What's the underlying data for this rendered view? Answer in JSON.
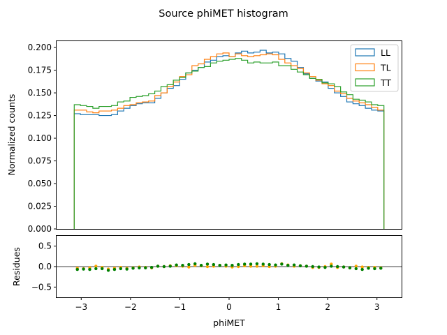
{
  "chart_data": [
    {
      "type": "histogram-step",
      "title": "Source phiMET histogram",
      "xlabel": "",
      "ylabel": "Normalized counts",
      "xlim": [
        -3.5,
        3.5
      ],
      "ylim": [
        0,
        0.207
      ],
      "yticks": [
        0.0,
        0.025,
        0.05,
        0.075,
        0.1,
        0.125,
        0.15,
        0.175,
        0.2
      ],
      "ytick_labels": [
        "0.000",
        "0.025",
        "0.050",
        "0.075",
        "0.100",
        "0.125",
        "0.150",
        "0.175",
        "0.200"
      ],
      "legend_position": "top-right",
      "bin_range": [
        -3.1416,
        3.1416
      ],
      "series": [
        {
          "name": "LL",
          "color": "#1f77b4",
          "values": [
            0.127,
            0.126,
            0.126,
            0.126,
            0.125,
            0.125,
            0.126,
            0.13,
            0.133,
            0.136,
            0.138,
            0.139,
            0.139,
            0.144,
            0.15,
            0.155,
            0.158,
            0.165,
            0.172,
            0.175,
            0.178,
            0.184,
            0.186,
            0.19,
            0.191,
            0.19,
            0.194,
            0.196,
            0.194,
            0.195,
            0.197,
            0.194,
            0.195,
            0.193,
            0.188,
            0.185,
            0.178,
            0.171,
            0.166,
            0.163,
            0.162,
            0.155,
            0.15,
            0.146,
            0.14,
            0.138,
            0.136,
            0.133,
            0.131,
            0.13
          ]
        },
        {
          "name": "TL",
          "color": "#ff7f0e",
          "values": [
            0.131,
            0.131,
            0.129,
            0.128,
            0.13,
            0.13,
            0.131,
            0.133,
            0.136,
            0.137,
            0.139,
            0.14,
            0.141,
            0.147,
            0.15,
            0.157,
            0.162,
            0.168,
            0.17,
            0.18,
            0.182,
            0.187,
            0.19,
            0.193,
            0.194,
            0.19,
            0.193,
            0.191,
            0.19,
            0.191,
            0.192,
            0.193,
            0.192,
            0.187,
            0.183,
            0.18,
            0.177,
            0.172,
            0.168,
            0.164,
            0.16,
            0.158,
            0.152,
            0.149,
            0.144,
            0.141,
            0.139,
            0.137,
            0.134,
            0.131
          ]
        },
        {
          "name": "TT",
          "color": "#2ca02c",
          "values": [
            0.137,
            0.136,
            0.135,
            0.133,
            0.135,
            0.135,
            0.136,
            0.14,
            0.141,
            0.145,
            0.146,
            0.147,
            0.149,
            0.152,
            0.157,
            0.159,
            0.164,
            0.167,
            0.172,
            0.174,
            0.178,
            0.179,
            0.183,
            0.185,
            0.186,
            0.187,
            0.188,
            0.186,
            0.183,
            0.184,
            0.183,
            0.183,
            0.184,
            0.18,
            0.18,
            0.176,
            0.173,
            0.17,
            0.166,
            0.165,
            0.161,
            0.16,
            0.157,
            0.151,
            0.148,
            0.143,
            0.142,
            0.14,
            0.137,
            0.136
          ]
        }
      ]
    },
    {
      "type": "scatter",
      "title": "",
      "xlabel": "phiMET",
      "ylabel": "Residues",
      "xlim": [
        -3.5,
        3.5
      ],
      "ylim": [
        -0.75,
        0.75
      ],
      "xticks": [
        -3,
        -2,
        -1,
        0,
        1,
        2,
        3
      ],
      "xtick_labels": [
        "−3",
        "−2",
        "−1",
        "0",
        "1",
        "2",
        "3"
      ],
      "yticks": [
        -0.5,
        0.0,
        0.5
      ],
      "ytick_labels": [
        "−0.5",
        "0.0",
        "0.5"
      ],
      "reference_line": 0,
      "series": [
        {
          "name": "",
          "color": "#ffa500",
          "values": [
            -0.04,
            -0.05,
            -0.03,
            0.01,
            -0.02,
            -0.06,
            -0.04,
            -0.02,
            -0.04,
            -0.03,
            -0.01,
            -0.02,
            -0.03,
            0.01,
            0.0,
            0.02,
            0.02,
            0.01,
            -0.01,
            0.03,
            0.02,
            0.0,
            0.01,
            0.03,
            0.01,
            -0.01,
            0.0,
            0.02,
            0.01,
            0.01,
            0.02,
            0.0,
            0.01,
            0.07,
            0.04,
            0.01,
            0.02,
            0.01,
            -0.02,
            -0.02,
            0.0,
            0.06,
            -0.02,
            -0.01,
            -0.03,
            0.01,
            -0.01,
            -0.02,
            -0.02,
            -0.03
          ]
        },
        {
          "name": "",
          "color": "#008000",
          "values": [
            -0.07,
            -0.06,
            -0.07,
            -0.05,
            -0.05,
            -0.09,
            -0.07,
            -0.05,
            -0.06,
            -0.04,
            -0.03,
            -0.03,
            -0.02,
            0.01,
            0.0,
            0.01,
            0.04,
            0.03,
            0.05,
            0.07,
            0.03,
            0.06,
            0.05,
            0.03,
            0.04,
            0.03,
            0.05,
            0.06,
            0.06,
            0.07,
            0.06,
            0.05,
            0.04,
            0.06,
            0.03,
            0.04,
            0.02,
            0.01,
            0.0,
            -0.01,
            -0.02,
            0.01,
            0.0,
            -0.01,
            -0.03,
            -0.05,
            -0.07,
            -0.04,
            -0.05,
            -0.04
          ]
        }
      ]
    }
  ]
}
